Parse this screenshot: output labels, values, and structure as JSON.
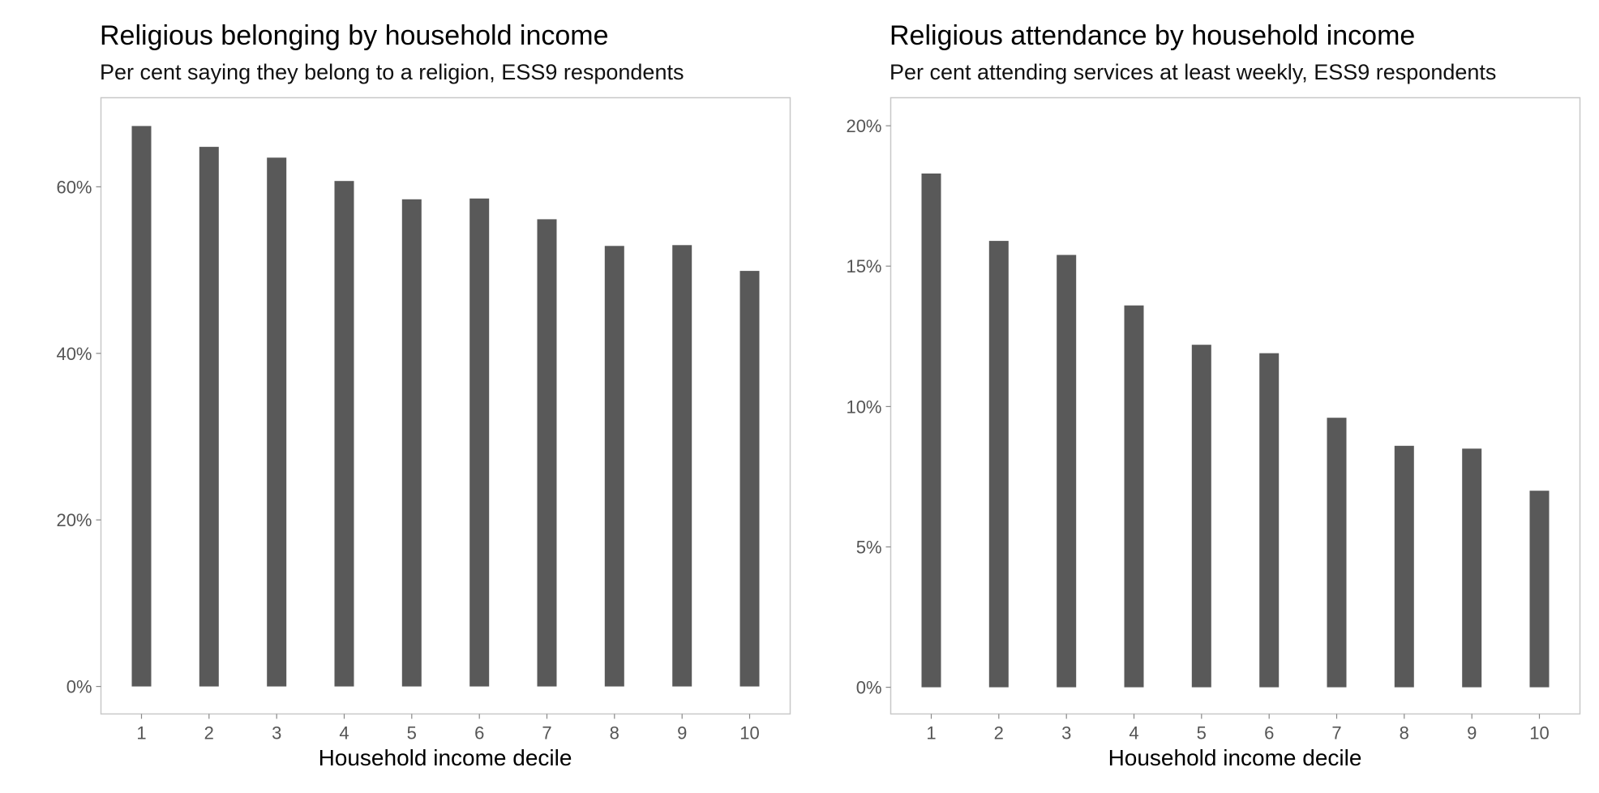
{
  "colors": {
    "bar": "#595959",
    "panel_border": "#c8c8c8",
    "tick": "#888888",
    "background": "#ffffff"
  },
  "chart_data": [
    {
      "type": "bar",
      "title": "Religious belonging by household income",
      "subtitle": "Per cent saying they belong to a religion, ESS9 respondents",
      "xlabel": "Household income decile",
      "ylabel": "",
      "categories": [
        "1",
        "2",
        "3",
        "4",
        "5",
        "6",
        "7",
        "8",
        "9",
        "10"
      ],
      "values": [
        67.3,
        64.8,
        63.5,
        60.7,
        58.5,
        58.6,
        56.1,
        52.9,
        53.0,
        49.9
      ],
      "value_unit": "%",
      "ylim": [
        -3.3,
        70.7
      ],
      "yticks": [
        0,
        20,
        40,
        60
      ],
      "ytick_labels": [
        "0%",
        "20%",
        "40%",
        "60%"
      ],
      "grid": false,
      "legend": "none"
    },
    {
      "type": "bar",
      "title": "Religious attendance by household income",
      "subtitle": "Per cent attending services at least weekly, ESS9 respondents",
      "xlabel": "Household income decile",
      "ylabel": "",
      "categories": [
        "1",
        "2",
        "3",
        "4",
        "5",
        "6",
        "7",
        "8",
        "9",
        "10"
      ],
      "values": [
        18.3,
        15.9,
        15.4,
        13.6,
        12.2,
        11.9,
        9.6,
        8.6,
        8.5,
        7.0
      ],
      "value_unit": "%",
      "ylim": [
        -0.95,
        21.0
      ],
      "yticks": [
        0,
        5,
        10,
        15,
        20
      ],
      "ytick_labels": [
        "0%",
        "5%",
        "10%",
        "15%",
        "20%"
      ],
      "grid": false,
      "legend": "none"
    }
  ]
}
